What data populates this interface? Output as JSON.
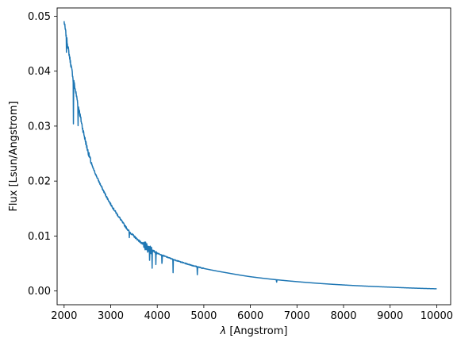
{
  "chart_data": {
    "type": "line",
    "title": "",
    "xlabel_symbol": "λ",
    "xlabel_unit": " [Angstrom]",
    "ylabel": "Flux [Lsun/Angstrom]",
    "xlim": [
      1850,
      10300
    ],
    "ylim": [
      -0.0025,
      0.0515
    ],
    "xticks": [
      2000,
      3000,
      4000,
      5000,
      6000,
      7000,
      8000,
      9000,
      10000
    ],
    "xtick_labels": [
      "2000",
      "3000",
      "4000",
      "5000",
      "6000",
      "7000",
      "8000",
      "9000",
      "10000"
    ],
    "yticks": [
      0.0,
      0.01,
      0.02,
      0.03,
      0.04,
      0.05
    ],
    "ytick_labels": [
      "0.00",
      "0.01",
      "0.02",
      "0.03",
      "0.04",
      "0.05"
    ],
    "grid": false,
    "series": [
      {
        "color": "#1f77b4",
        "continuum": {
          "x": [
            2000,
            2100,
            2200,
            2300,
            2400,
            2500,
            2600,
            2800,
            3000,
            3200,
            3400,
            3600,
            3800,
            4000,
            4200,
            4500,
            5000,
            5500,
            6000,
            6500,
            7000,
            8000,
            9000,
            10000
          ],
          "y": [
            0.049,
            0.0435,
            0.0385,
            0.034,
            0.0295,
            0.0258,
            0.0228,
            0.019,
            0.0158,
            0.0132,
            0.0108,
            0.0092,
            0.0078,
            0.0069,
            0.0062,
            0.0053,
            0.0041,
            0.0033,
            0.0026,
            0.0021,
            0.0017,
            0.0011,
            0.0007,
            0.0004
          ]
        },
        "absorption_lines": [
          {
            "x": 2050,
            "depth": 0.0025
          },
          {
            "x": 2200,
            "depth": 0.008
          },
          {
            "x": 2300,
            "depth": 0.004
          },
          {
            "x": 3400,
            "depth": 0.0012
          },
          {
            "x": 3798,
            "depth": 0.0014
          },
          {
            "x": 3835,
            "depth": 0.0018
          },
          {
            "x": 3889,
            "depth": 0.0028
          },
          {
            "x": 3970,
            "depth": 0.0022
          },
          {
            "x": 4102,
            "depth": 0.0022
          },
          {
            "x": 4340,
            "depth": 0.0024
          },
          {
            "x": 4861,
            "depth": 0.0016
          },
          {
            "x": 6563,
            "depth": 0.0006
          }
        ]
      }
    ]
  }
}
